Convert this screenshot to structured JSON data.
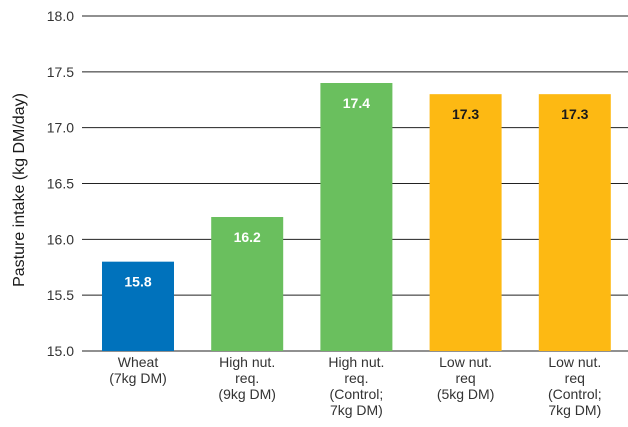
{
  "chart_data": {
    "type": "bar",
    "title": "",
    "xlabel": "",
    "ylabel": "Pasture intake (kg DM/day)",
    "ylim": [
      15.0,
      18.0
    ],
    "yticks": [
      "15.0",
      "15.5",
      "16.0",
      "16.5",
      "17.0",
      "17.5",
      "18.0"
    ],
    "grid": true,
    "categories": [
      [
        "Wheat",
        "(7kg DM)"
      ],
      [
        "High nut.",
        "req.",
        "(9kg DM)"
      ],
      [
        "High nut.",
        "req.",
        "(Control;",
        "7kg DM)"
      ],
      [
        "Low nut.",
        "req",
        "(5kg DM)"
      ],
      [
        "Low nut.",
        "req",
        "(Control;",
        "7kg DM)"
      ]
    ],
    "values": [
      15.8,
      16.2,
      17.4,
      17.3,
      17.3
    ],
    "data_labels": [
      "15.8",
      "16.2",
      "17.4",
      "17.3",
      "17.3"
    ],
    "bar_colors": [
      "#0072bc",
      "#6abf5e",
      "#6abf5e",
      "#fdb913",
      "#fdb913"
    ],
    "label_colors": [
      "#ffffff",
      "#ffffff",
      "#ffffff",
      "#1a1a1a",
      "#1a1a1a"
    ]
  }
}
